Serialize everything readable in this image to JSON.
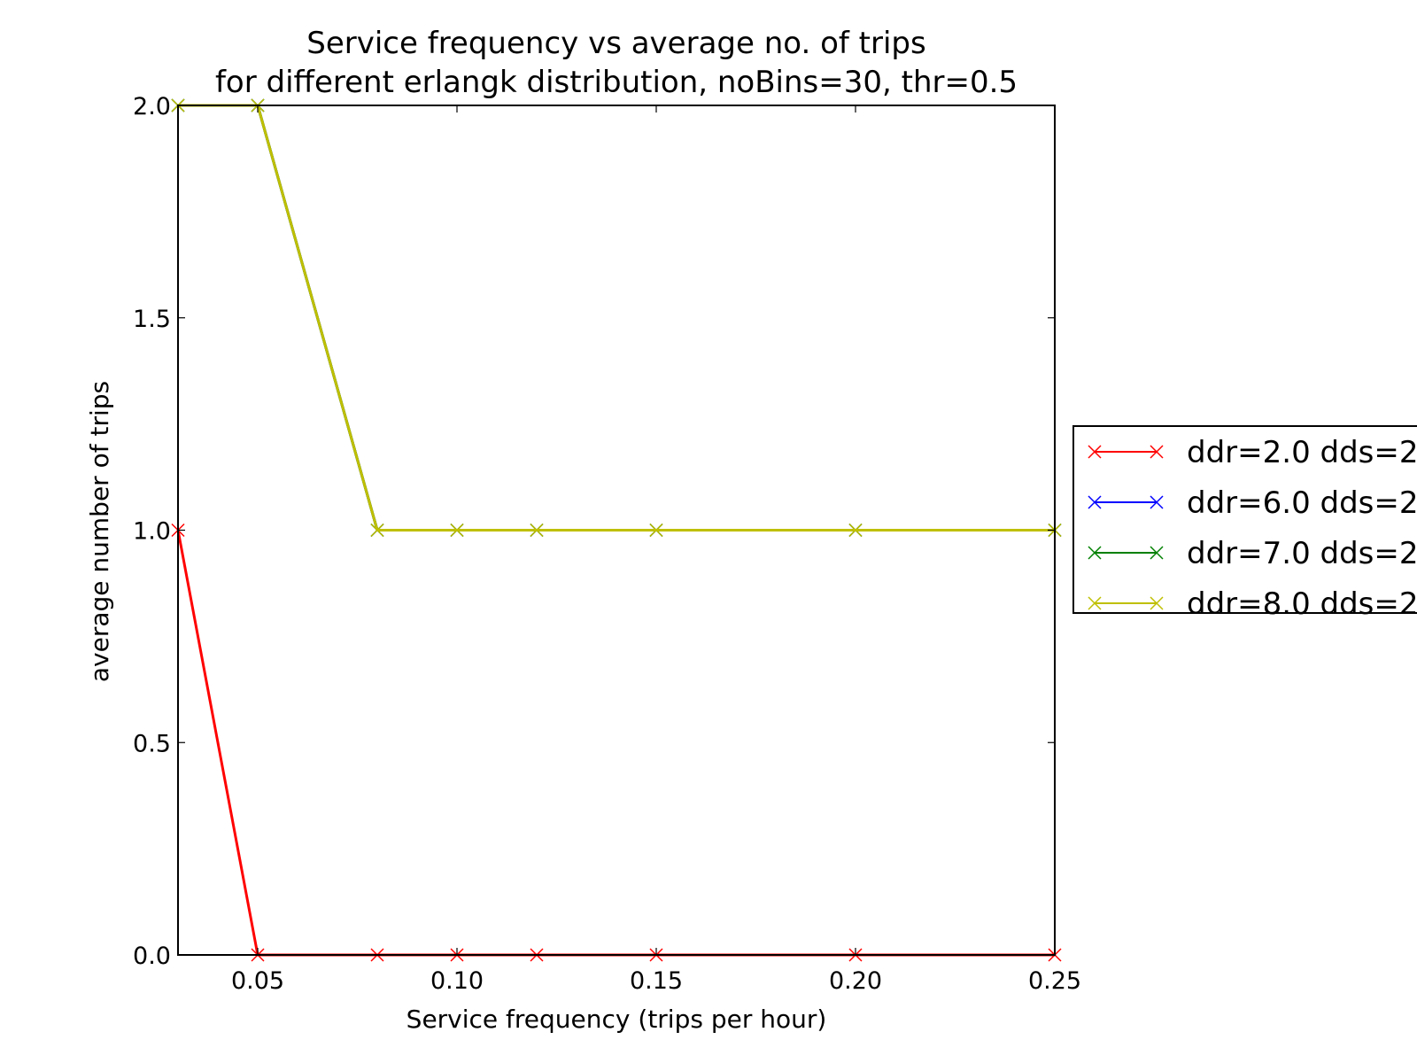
{
  "chart_data": {
    "type": "line",
    "title": [
      "Service frequency vs average no. of trips",
      "for different erlangk distribution, noBins=30, thr=0.5"
    ],
    "xlabel": "Service frequency (trips per hour)",
    "ylabel": "average number of trips",
    "xlim": [
      0.03,
      0.25
    ],
    "ylim": [
      0.0,
      2.0
    ],
    "xticks": [
      "0.05",
      "0.10",
      "0.15",
      "0.20",
      "0.25"
    ],
    "yticks": [
      "0.0",
      "0.5",
      "1.0",
      "1.5",
      "2.0"
    ],
    "grid": false,
    "legend_position": "right, outside plot (clipped)",
    "marker": "x",
    "series": [
      {
        "name": "ddr=2.0 dds=2",
        "color": "#ff0000",
        "x": [
          0.03,
          0.05,
          0.08,
          0.1,
          0.12,
          0.15,
          0.2,
          0.25
        ],
        "y": [
          1.0,
          0.0,
          0.0,
          0.0,
          0.0,
          0.0,
          0.0,
          0.0
        ]
      },
      {
        "name": "ddr=6.0 dds=2",
        "color": "#0000ff",
        "x": [
          0.03,
          0.05,
          0.08,
          0.1,
          0.12,
          0.15,
          0.2,
          0.25
        ],
        "y": [
          2.0,
          2.0,
          1.0,
          1.0,
          1.0,
          1.0,
          1.0,
          1.0
        ]
      },
      {
        "name": "ddr=7.0 dds=2",
        "color": "#008000",
        "x": [
          0.03,
          0.05,
          0.08,
          0.1,
          0.12,
          0.15,
          0.2,
          0.25
        ],
        "y": [
          2.0,
          2.0,
          1.0,
          1.0,
          1.0,
          1.0,
          1.0,
          1.0
        ]
      },
      {
        "name": "ddr=8.0 dds=2",
        "color": "#bfbf00",
        "x": [
          0.03,
          0.05,
          0.08,
          0.1,
          0.12,
          0.15,
          0.2,
          0.25
        ],
        "y": [
          2.0,
          2.0,
          1.0,
          1.0,
          1.0,
          1.0,
          1.0,
          1.0
        ]
      }
    ]
  }
}
